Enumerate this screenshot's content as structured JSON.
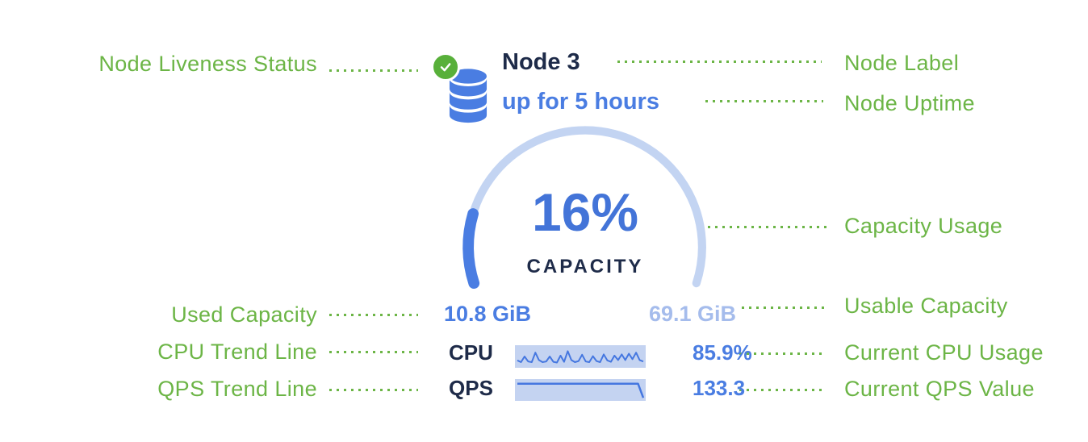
{
  "annotations": {
    "node_liveness_status": "Node Liveness Status",
    "node_label": "Node Label",
    "node_uptime": "Node Uptime",
    "capacity_usage": "Capacity Usage",
    "used_capacity": "Used Capacity",
    "usable_capacity": "Usable Capacity",
    "cpu_trend_line": "CPU Trend Line",
    "current_cpu_usage": "Current CPU Usage",
    "qps_trend_line": "QPS Trend Line",
    "current_qps_value": "Current QPS Value"
  },
  "node": {
    "name": "Node 3",
    "uptime": "up for 5 hours",
    "liveness_icon": "check-circle-icon",
    "node_icon": "database-icon",
    "capacity": {
      "percent": 16,
      "percent_label": "16%",
      "caption": "CAPACITY",
      "used": "10.8 GiB",
      "usable": "69.1 GiB"
    },
    "cpu": {
      "label": "CPU",
      "value": "85.9%",
      "trend": [
        0.28,
        0.18,
        0.5,
        0.22,
        0.18,
        0.72,
        0.3,
        0.18,
        0.22,
        0.5,
        0.2,
        0.16,
        0.55,
        0.2,
        0.8,
        0.3,
        0.18,
        0.24,
        0.6,
        0.22,
        0.18,
        0.52,
        0.24,
        0.18,
        0.62,
        0.28,
        0.2,
        0.55,
        0.3,
        0.62,
        0.3,
        0.66,
        0.35,
        0.72,
        0.3,
        0.22
      ]
    },
    "qps": {
      "label": "QPS",
      "value": "133.3",
      "trend": [
        0.87,
        0.87,
        0.87,
        0.87,
        0.87,
        0.87,
        0.87,
        0.87,
        0.87,
        0.87,
        0.87,
        0.87,
        0.87,
        0.87,
        0.87,
        0.87,
        0.87,
        0.87,
        0.87,
        0.87,
        0.87,
        0.87,
        0.87,
        0.87,
        0.04
      ]
    }
  },
  "colors": {
    "annotation_green": "#6cb546",
    "liveness_green": "#58b03a",
    "primary_blue": "#4a7de2",
    "navy": "#1e2b49",
    "light_blue": "#a5bcec",
    "gauge_track": "#c3d4f2",
    "spark_background": "#c4d3f1"
  }
}
